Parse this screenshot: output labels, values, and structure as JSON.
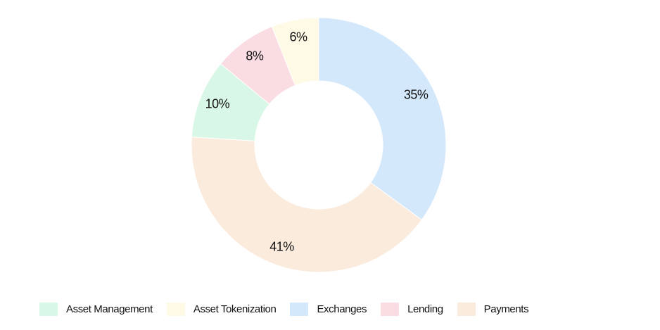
{
  "chart_data": {
    "type": "pie",
    "donut": true,
    "categories": [
      "Asset Management",
      "Asset Tokenization",
      "Exchanges",
      "Lending",
      "Payments"
    ],
    "values": [
      10,
      6,
      35,
      8,
      41
    ],
    "labels": [
      "10%",
      "6%",
      "35%",
      "8%",
      "41%"
    ],
    "colors": [
      "#d9f7e6",
      "#fefae6",
      "#d4e8fb",
      "#fadde2",
      "#fbebdd"
    ],
    "slice_order": [
      "Exchanges",
      "Payments",
      "Asset Management",
      "Lending",
      "Asset Tokenization"
    ],
    "start_angle": "12 o'clock",
    "direction": "clockwise",
    "legend_position": "bottom",
    "title": ""
  }
}
